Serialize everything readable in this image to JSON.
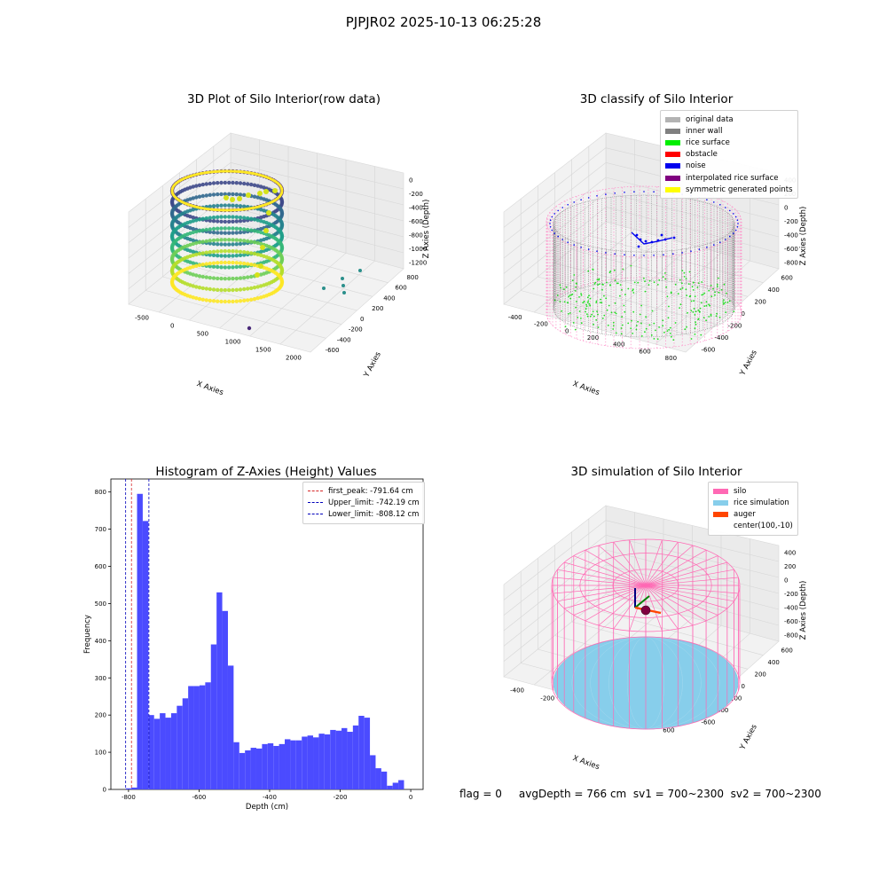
{
  "suptitle": "PJPJR02 2025-10-13 06:25:28",
  "footer": "flag = 0     avgDepth = 766 cm  sv1 = 700~2300  sv2 = 700~2300",
  "colors": {
    "histogram_bar": "#4b4bff",
    "first_peak_line": "#d62728",
    "limit_lines": "#0000bb",
    "silo_wire": "#ff69b4",
    "rice": "#87ceeb",
    "auger": "#ff4500"
  },
  "chart_data": [
    {
      "type": "scatter",
      "projection": "3d",
      "title": "3D Plot of Silo Interior(row data)",
      "xlabel": "X Axies",
      "ylabel": "Y Axies",
      "zlabel": "Z Axies (Depth)",
      "x_ticks": [
        "-500",
        "0",
        "500",
        "1000",
        "1500",
        "2000"
      ],
      "y_ticks": [
        "-600",
        "-400",
        "-200",
        "0",
        "200",
        "400",
        "600",
        "800"
      ],
      "z_ticks": [
        "-1200",
        "-1000",
        "-800",
        "-600",
        "-400",
        "-200",
        "0"
      ],
      "colormap": "viridis",
      "grid": true
    },
    {
      "type": "scatter",
      "projection": "3d",
      "title": "3D classify of Silo Interior",
      "xlabel": "X Axies",
      "ylabel": "Y Axies",
      "zlabel": "Z Axies (Depth)",
      "x_ticks": [
        "-400",
        "-200",
        "0",
        "200",
        "400",
        "600",
        "800"
      ],
      "y_ticks": [
        "-600",
        "-400",
        "-200",
        "0",
        "200",
        "400",
        "600"
      ],
      "z_ticks": [
        "-800",
        "-600",
        "-400",
        "-200",
        "0",
        "200",
        "400"
      ],
      "legend_position": "top-right",
      "legend": [
        {
          "label": "original data",
          "color": "#b3b3b3"
        },
        {
          "label": "inner wall",
          "color": "#808080"
        },
        {
          "label": "rice surface",
          "color": "#00ee00"
        },
        {
          "label": "obstacle",
          "color": "#ff0000"
        },
        {
          "label": "noise",
          "color": "#0000ee"
        },
        {
          "label": "interpolated rice surface",
          "color": "#800080"
        },
        {
          "label": "symmetric generated points",
          "color": "#ffff00"
        }
      ],
      "grid": true
    },
    {
      "type": "bar",
      "title": "Histogram of Z-Axies (Height) Values",
      "xlabel": "Depth (cm)",
      "ylabel": "Frequency",
      "xlim": [
        -850,
        35
      ],
      "ylim": [
        0,
        835
      ],
      "x_ticks": [
        "-800",
        "-600",
        "-400",
        "-200",
        "0"
      ],
      "y_ticks": [
        "0",
        "100",
        "200",
        "300",
        "400",
        "500",
        "600",
        "700",
        "800"
      ],
      "bin_start": -808,
      "bin_width": 16.1,
      "values": [
        3,
        5,
        795,
        722,
        200,
        190,
        205,
        193,
        205,
        225,
        245,
        278,
        278,
        280,
        288,
        390,
        530,
        480,
        333,
        127,
        98,
        105,
        112,
        110,
        122,
        124,
        117,
        122,
        135,
        132,
        132,
        142,
        145,
        140,
        150,
        148,
        160,
        158,
        165,
        155,
        172,
        198,
        193,
        92,
        57,
        48,
        10,
        18,
        25
      ],
      "reference_lines": [
        {
          "label": "first_peak: -791.64 cm",
          "value": -791.64,
          "color": "#d62728"
        },
        {
          "label": "Upper_limit: -742.19 cm",
          "value": -742.19,
          "color": "#0000bb"
        },
        {
          "label": "Lower_limit: -808.12 cm",
          "value": -808.12,
          "color": "#0000bb"
        }
      ],
      "legend_position": "top-right",
      "grid": false
    },
    {
      "type": "scatter",
      "projection": "3d",
      "title": "3D simulation of Silo Interior",
      "xlabel": "X Axies",
      "ylabel": "Y Axies",
      "zlabel": "Z Axies (Depth)",
      "x_ticks": [
        "-400",
        "-200",
        "0",
        "200",
        "400",
        "600"
      ],
      "y_ticks": [
        "-600",
        "-400",
        "-200",
        "0",
        "200",
        "400",
        "600"
      ],
      "z_ticks": [
        "-800",
        "-600",
        "-400",
        "-200",
        "0",
        "200",
        "400"
      ],
      "legend_position": "top-right",
      "legend": [
        {
          "label": "silo",
          "color": "#ff69b4"
        },
        {
          "label": "rice simulation",
          "color": "#87ceeb"
        },
        {
          "label": "auger",
          "color": "#ff4500"
        },
        {
          "label": "center(100,-10)",
          "color": ""
        }
      ],
      "grid": true
    }
  ]
}
